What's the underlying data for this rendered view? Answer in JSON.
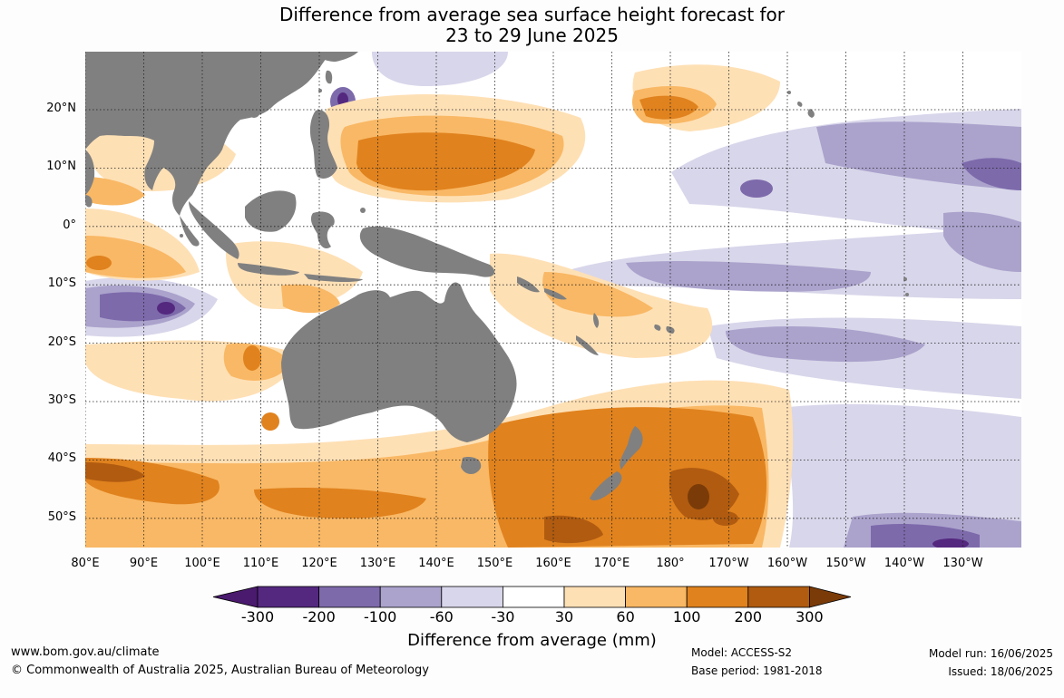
{
  "title": {
    "line1": "Difference from average sea surface height forecast for",
    "line2": "23 to 29 June 2025"
  },
  "latitude_labels": [
    "20°N",
    "10°N",
    "0°",
    "10°S",
    "20°S",
    "30°S",
    "40°S",
    "50°S"
  ],
  "longitude_labels": [
    "80°E",
    "90°E",
    "100°E",
    "110°E",
    "120°E",
    "130°E",
    "140°E",
    "150°E",
    "160°E",
    "170°E",
    "180°",
    "170°W",
    "160°W",
    "150°W",
    "140°W",
    "130°W"
  ],
  "colorbar": {
    "title": "Difference from average (mm)",
    "ticks": [
      "-300",
      "-200",
      "-100",
      "-60",
      "-30",
      "30",
      "60",
      "100",
      "200",
      "300"
    ],
    "colors": [
      "#4a1a6e",
      "#54287f",
      "#7d6aab",
      "#aba3cc",
      "#d8d6ea",
      "#ffffff",
      "#fee0b5",
      "#f9b865",
      "#e0821e",
      "#b05b10",
      "#7a3b08"
    ]
  },
  "colors": {
    "land": "#808080",
    "ocean": "#ffffff",
    "grid": "#333333"
  },
  "footer": {
    "website": "www.bom.gov.au/climate",
    "copyright": "© Commonwealth of Australia 2025, Australian Bureau of Meteorology",
    "model": "Model: ACCESS-S2",
    "base_period": "Base period: 1981-2018",
    "model_run": "Model run: 16/06/2025",
    "issued": "Issued: 18/06/2025"
  }
}
